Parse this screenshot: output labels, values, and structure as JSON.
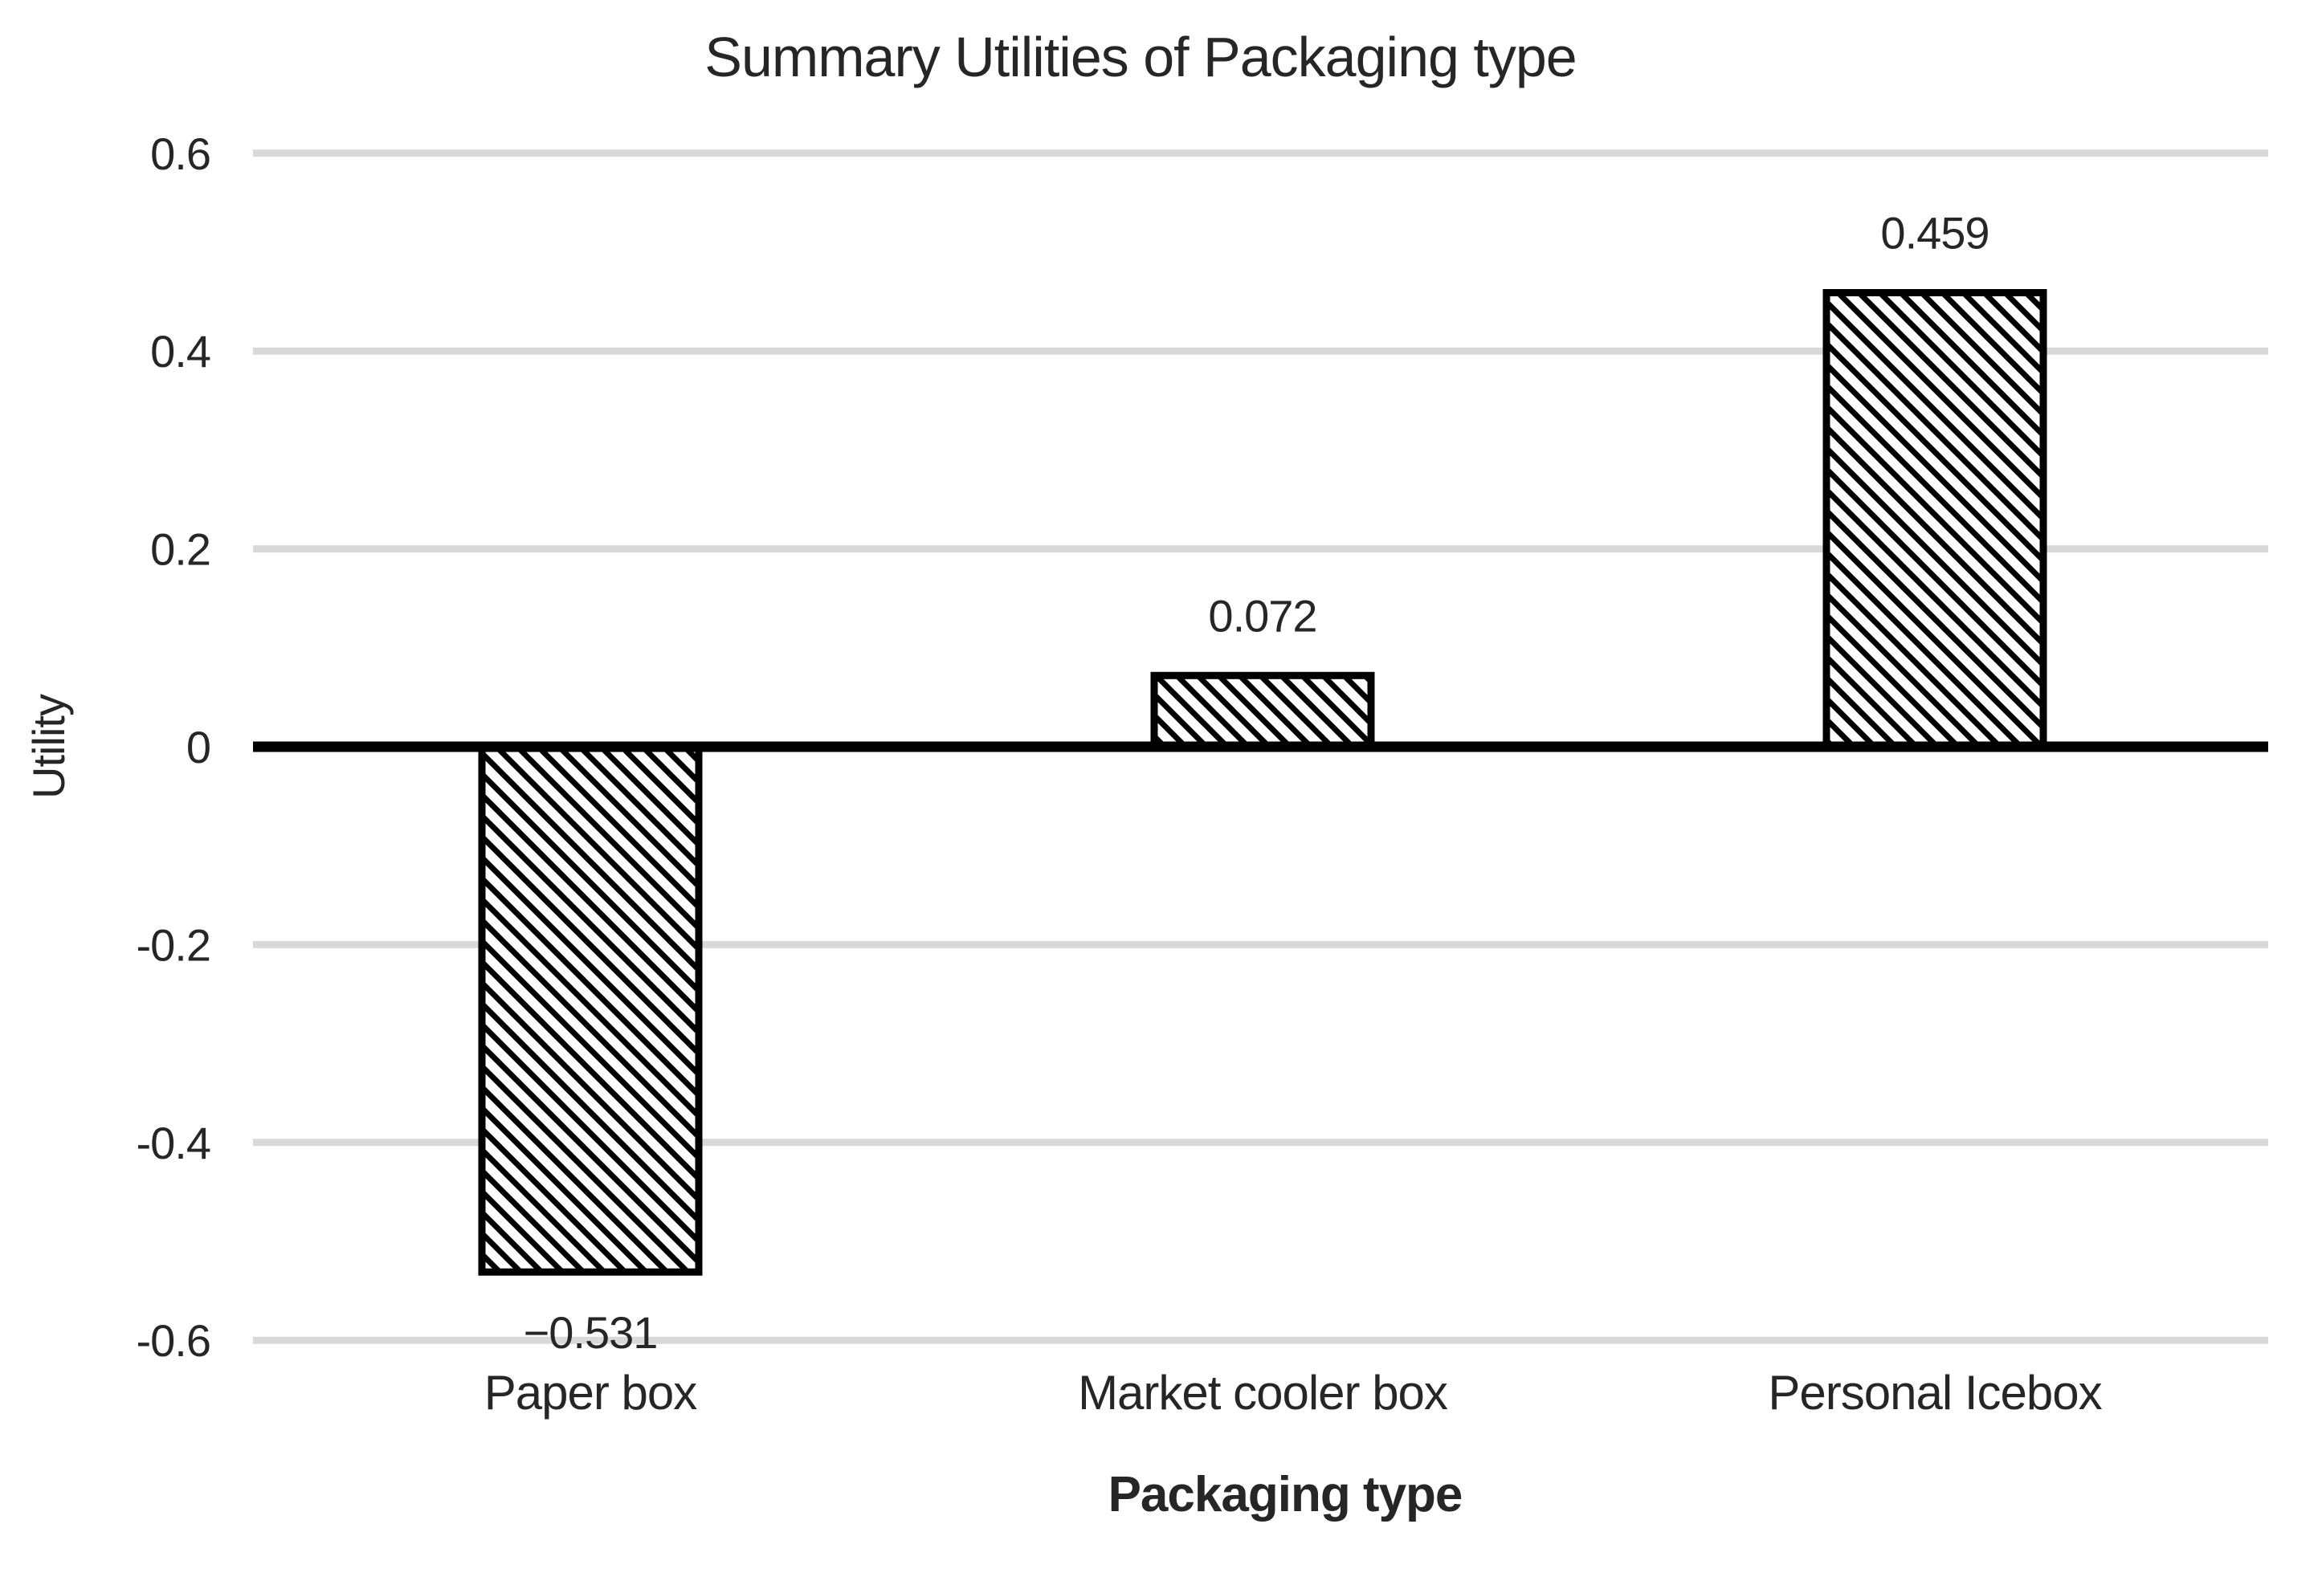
{
  "chart_data": {
    "type": "bar",
    "title": "Summary Utilities of Packaging type",
    "xlabel": "Packaging type",
    "ylabel": "Utility",
    "categories": [
      "Paper box",
      "Market cooler box",
      "Personal Icebox"
    ],
    "values": [
      -0.531,
      0.072,
      0.459
    ],
    "value_labels": [
      "−0.531",
      "0.072",
      "0.459"
    ],
    "series_name": "Utility",
    "ylim": [
      -0.6,
      0.6
    ],
    "yticks": [
      0.6,
      0.4,
      0.2,
      0,
      -0.2,
      -0.4,
      -0.6
    ],
    "ytick_labels": [
      "0.6",
      "0.4",
      "0.2",
      "0",
      "-0.2",
      "-0.4",
      "-0.6"
    ],
    "grid": true,
    "legend_position": "none",
    "bar_style": {
      "fill": "#ffffff",
      "hatch": "diagonal-down",
      "hatch_color": "#000000",
      "border_color": "#000000"
    },
    "colors": {
      "text": "#262626",
      "gridline": "#d9d9d9",
      "zero_line": "#000000",
      "background": "#ffffff"
    }
  }
}
